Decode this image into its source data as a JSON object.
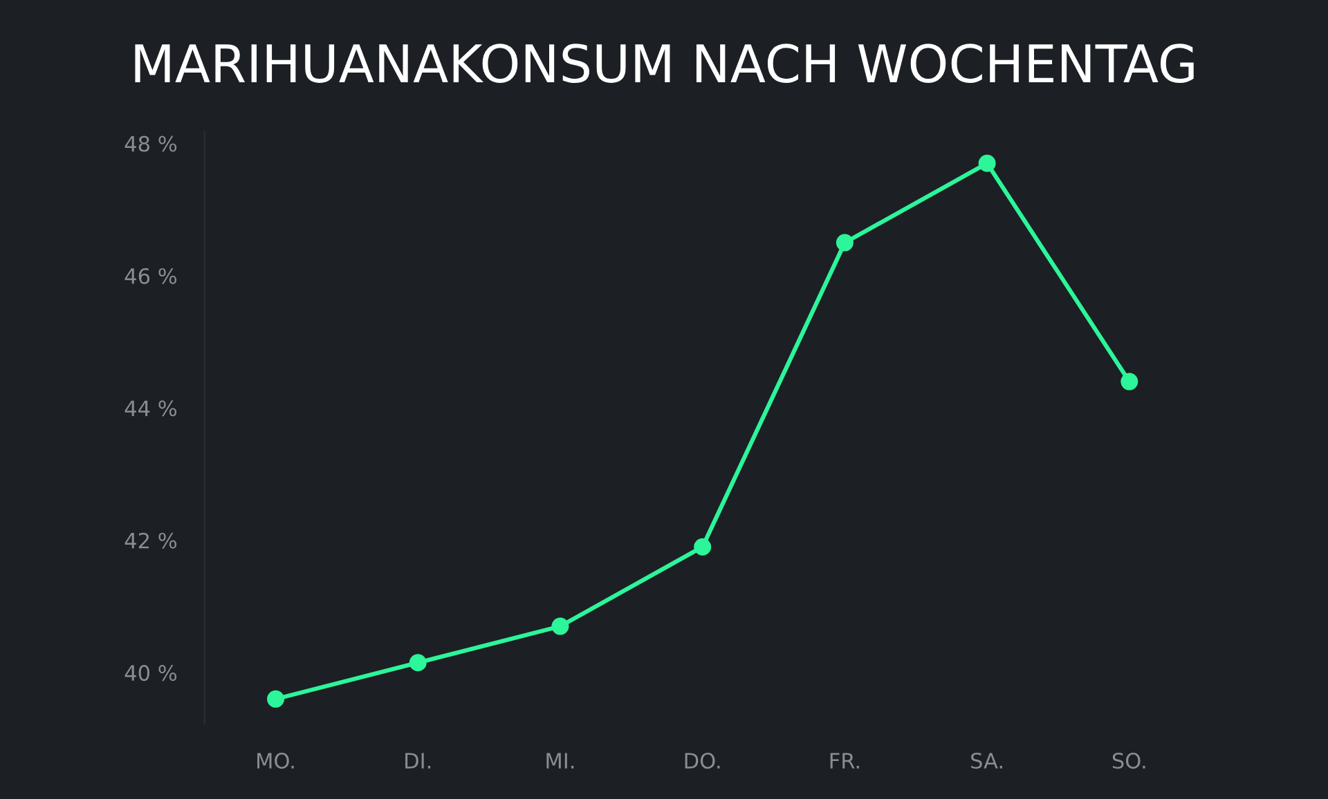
{
  "chart_data": {
    "type": "line",
    "title": "MARIHUANAKONSUM NACH WOCHENTAG",
    "categories": [
      "MO.",
      "DI.",
      "MI.",
      "DO.",
      "FR.",
      "SA.",
      "SO."
    ],
    "series": [
      {
        "color": "#2cf59a",
        "values": [
          39.6,
          40.15,
          40.7,
          41.9,
          46.5,
          47.7,
          44.4
        ]
      }
    ],
    "ylim": [
      39.2,
      48.2
    ],
    "yticks": [
      {
        "value": 40,
        "label": "40 %"
      },
      {
        "value": 42,
        "label": "42 %"
      },
      {
        "value": 44,
        "label": "44 %"
      },
      {
        "value": 46,
        "label": "46 %"
      },
      {
        "value": 48,
        "label": "48 %"
      }
    ],
    "grid": false,
    "legend": false,
    "marker": "circle",
    "line_style": "solid"
  }
}
